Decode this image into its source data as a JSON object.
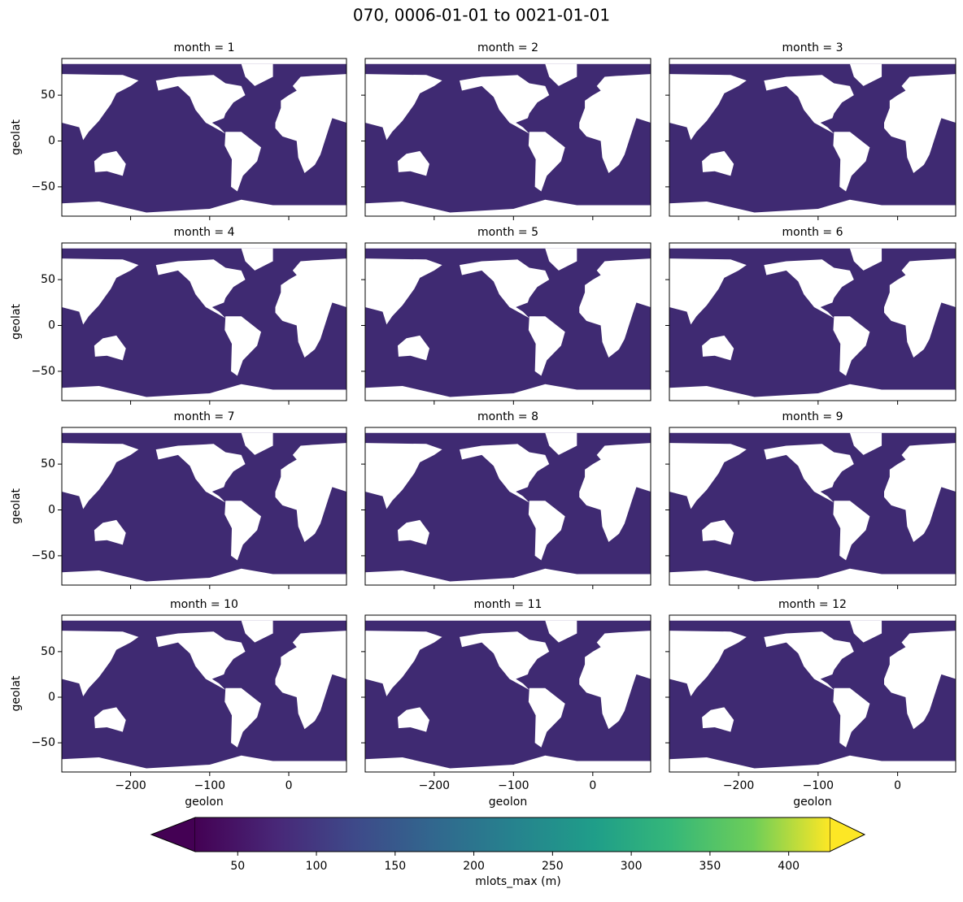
{
  "chart_data": {
    "type": "heatmap",
    "title": "070, 0006-01-01 to 0021-01-01",
    "facets": [
      "month = 1",
      "month = 2",
      "month = 3",
      "month = 4",
      "month = 5",
      "month = 6",
      "month = 7",
      "month = 8",
      "month = 9",
      "month = 10",
      "month = 11",
      "month = 12"
    ],
    "xlabel": "geolon",
    "ylabel": "geolat",
    "xlim": [
      -287,
      73
    ],
    "ylim": [
      -82,
      90
    ],
    "xticks": [
      {
        "value": -200,
        "label": "−200"
      },
      {
        "value": -100,
        "label": "−100"
      },
      0
    ],
    "yticks": [
      {
        "value": -50,
        "label": "−50"
      },
      0,
      50
    ],
    "colorbar": {
      "label": "mlots_max (m)",
      "colormap": "viridis",
      "extend": "both",
      "lim": [
        23,
        426
      ],
      "ticks": [
        50,
        100,
        150,
        200,
        250,
        300,
        350,
        400
      ]
    }
  }
}
